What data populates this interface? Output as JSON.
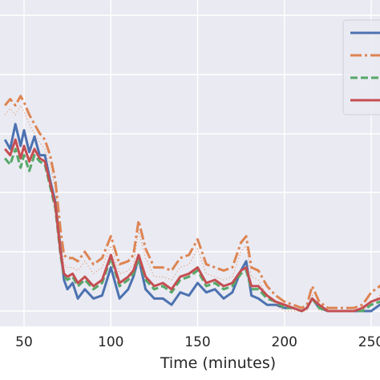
{
  "chart_data": {
    "type": "line",
    "xlabel": "Time (minutes)",
    "ylabel": "",
    "xlim": [
      39,
      262
    ],
    "ylim": [
      0,
      100
    ],
    "grid": true,
    "legend": "top-right",
    "x_ticks": [
      "50",
      "100",
      "150",
      "200",
      "250"
    ],
    "colors": {
      "background": "#eaeaf2",
      "grid": "#ffffff",
      "series": [
        "#4c72b0",
        "#dd8452",
        "#55a868",
        "#c44e52"
      ]
    },
    "series": [
      {
        "line_style": "solid",
        "x": [
          39,
          42,
          45,
          48,
          50,
          53,
          56,
          59,
          62,
          65,
          68,
          71,
          73,
          75,
          78,
          81,
          85,
          90,
          95,
          100,
          105,
          110,
          113,
          116,
          120,
          125,
          130,
          135,
          140,
          145,
          150,
          155,
          160,
          165,
          170,
          175,
          178,
          181,
          185,
          190,
          195,
          200,
          205,
          210,
          213,
          216,
          220,
          225,
          230,
          235,
          240,
          245,
          250,
          255,
          260,
          262
        ],
        "y": [
          55,
          52,
          60,
          53,
          58,
          51,
          56,
          50,
          50,
          42,
          35,
          20,
          10,
          7,
          9,
          4,
          7,
          4,
          5,
          14,
          4,
          7,
          11,
          17,
          7,
          4,
          4,
          2,
          6,
          5,
          9,
          6,
          7,
          4,
          6,
          13,
          16,
          5,
          4,
          2,
          2,
          1,
          1,
          0,
          1,
          4,
          1,
          0,
          0,
          0,
          0,
          0,
          0,
          2,
          4,
          5
        ]
      },
      {
        "line_style": "dashdot",
        "x": [
          39,
          42,
          45,
          48,
          50,
          53,
          56,
          59,
          62,
          65,
          68,
          71,
          73,
          75,
          78,
          81,
          85,
          90,
          95,
          100,
          105,
          110,
          113,
          116,
          120,
          125,
          130,
          135,
          140,
          145,
          150,
          155,
          160,
          165,
          170,
          175,
          178,
          181,
          185,
          190,
          195,
          200,
          205,
          210,
          213,
          216,
          220,
          225,
          230,
          235,
          240,
          245,
          250,
          255,
          260,
          262
        ],
        "y": [
          66,
          68,
          66,
          69,
          67,
          63,
          60,
          57,
          55,
          50,
          42,
          26,
          18,
          17,
          17,
          16,
          19,
          15,
          17,
          24,
          15,
          16,
          18,
          29,
          20,
          14,
          14,
          13,
          17,
          18,
          23,
          15,
          14,
          13,
          14,
          22,
          24,
          14,
          13,
          8,
          5,
          3,
          2,
          1,
          2,
          8,
          3,
          1,
          1,
          1,
          1,
          2,
          6,
          8,
          10,
          11
        ]
      },
      {
        "line_style": "dashed",
        "x": [
          39,
          42,
          45,
          48,
          50,
          53,
          56,
          59,
          62,
          65,
          68,
          71,
          73,
          75,
          78,
          81,
          85,
          90,
          95,
          100,
          105,
          110,
          113,
          116,
          120,
          125,
          130,
          135,
          140,
          145,
          150,
          155,
          160,
          165,
          170,
          175,
          178,
          181,
          185,
          190,
          195,
          200,
          205,
          210,
          213,
          216,
          220,
          225,
          230,
          235,
          240,
          245,
          250,
          255,
          260,
          262
        ],
        "y": [
          49,
          47,
          52,
          46,
          50,
          45,
          50,
          48,
          47,
          40,
          33,
          18,
          11,
          10,
          11,
          8,
          10,
          7,
          9,
          17,
          8,
          10,
          12,
          17,
          10,
          7,
          8,
          6,
          10,
          11,
          13,
          8,
          9,
          7,
          8,
          12,
          13,
          7,
          7,
          4,
          3,
          1,
          1,
          0,
          1,
          4,
          1,
          0,
          0,
          0,
          0,
          0,
          2,
          3,
          4,
          5
        ]
      },
      {
        "line_style": "solid",
        "x": [
          39,
          42,
          45,
          48,
          50,
          53,
          56,
          59,
          62,
          65,
          68,
          71,
          73,
          75,
          78,
          81,
          85,
          90,
          95,
          100,
          105,
          110,
          113,
          116,
          120,
          125,
          130,
          135,
          140,
          145,
          150,
          155,
          160,
          165,
          170,
          175,
          178,
          181,
          185,
          190,
          195,
          200,
          205,
          210,
          213,
          216,
          220,
          225,
          230,
          235,
          240,
          245,
          250,
          255,
          260,
          262
        ],
        "y": [
          52,
          50,
          55,
          49,
          53,
          48,
          52,
          49,
          48,
          41,
          34,
          19,
          12,
          11,
          12,
          9,
          11,
          8,
          10,
          18,
          9,
          11,
          13,
          18,
          11,
          8,
          9,
          7,
          11,
          12,
          14,
          9,
          10,
          8,
          9,
          13,
          14,
          8,
          8,
          5,
          3,
          2,
          1,
          0,
          1,
          4,
          2,
          0,
          0,
          0,
          0,
          1,
          3,
          4,
          5,
          6
        ]
      }
    ]
  }
}
